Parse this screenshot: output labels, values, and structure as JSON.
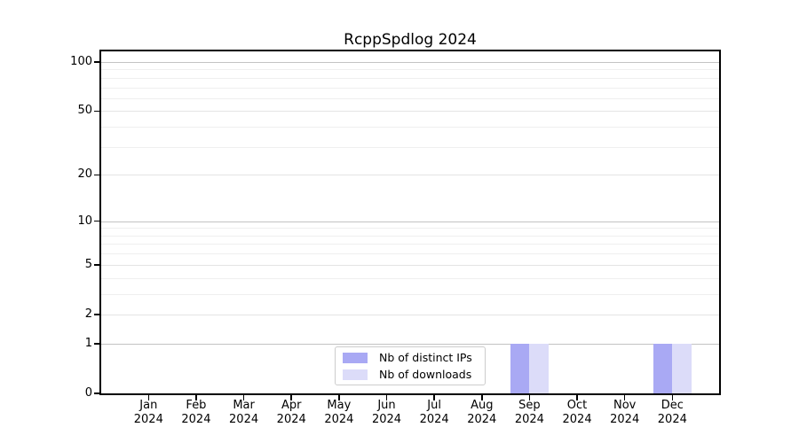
{
  "figure_title": "RcppSpdlog 2024",
  "chart_data": {
    "type": "bar",
    "title": "RcppSpdlog 2024",
    "categories": [
      "Jan 2024",
      "Feb 2024",
      "Mar 2024",
      "Apr 2024",
      "May 2024",
      "Jun 2024",
      "Jul 2024",
      "Aug 2024",
      "Sep 2024",
      "Oct 2024",
      "Nov 2024",
      "Dec 2024"
    ],
    "series": [
      {
        "name": "Nb of distinct IPs",
        "color": "#a9a9f4",
        "values": [
          0,
          0,
          0,
          0,
          0,
          0,
          0,
          0,
          1,
          0,
          0,
          1
        ]
      },
      {
        "name": "Nb of downloads",
        "color": "#dcdcf9",
        "values": [
          0,
          0,
          0,
          0,
          0,
          0,
          0,
          0,
          1,
          0,
          0,
          1
        ]
      }
    ],
    "y_ticks": [
      0,
      1,
      2,
      5,
      10,
      20,
      50,
      100
    ],
    "y_minor_gridlines": [
      3,
      4,
      6,
      7,
      8,
      9,
      30,
      40,
      60,
      70,
      80,
      90
    ],
    "y_scale": "log1p",
    "ylim": [
      0,
      110
    ],
    "grid": "horizontal major+minor",
    "legend": {
      "position": "inside-bottom-center"
    },
    "colors": {
      "grid_decade": "#c3c3c3",
      "grid_major": "#e4e4e4",
      "grid_minor": "#efefef",
      "axis": "#000000",
      "background": "#ffffff"
    }
  }
}
